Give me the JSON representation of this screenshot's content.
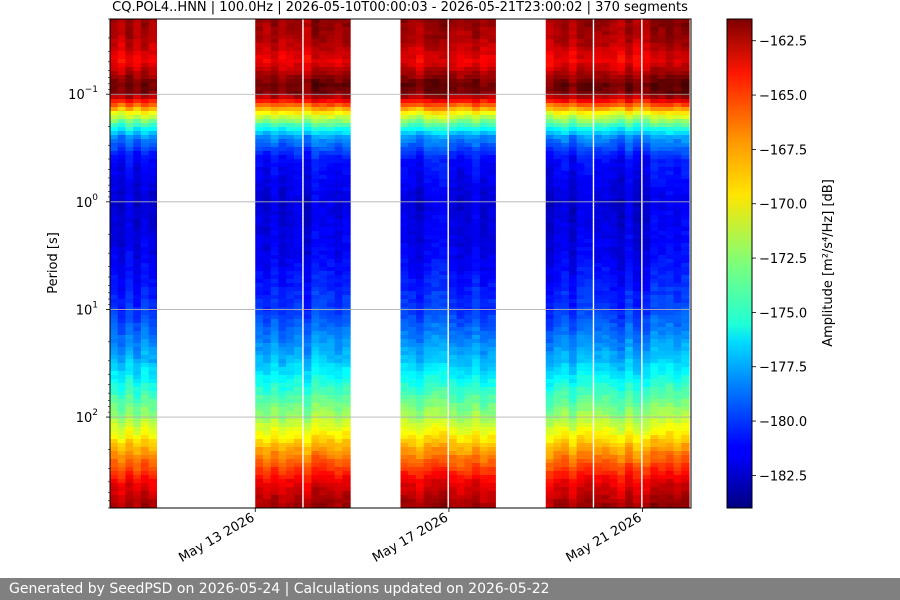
{
  "chart_data": {
    "type": "heatmap",
    "title": "CQ.POL4..HNN | 100.0Hz | 2026-05-10T00:00:03 - 2026-05-21T23:00:02 | 370 segments",
    "ylabel": "Period [s]",
    "y_scale": "log",
    "y_inverted": true,
    "ylim": [
      0.02,
      700
    ],
    "y_ticks": [
      {
        "value": 0.1,
        "base": "10",
        "exp": "−1"
      },
      {
        "value": 1,
        "base": "10",
        "exp": "0"
      },
      {
        "value": 10,
        "base": "10",
        "exp": "1"
      },
      {
        "value": 100,
        "base": "10",
        "exp": "2"
      }
    ],
    "xlim": [
      "2026-05-10T00:00:00",
      "2026-05-22T00:00:00"
    ],
    "x_ticks": [
      {
        "date": "2026-05-13",
        "label": "May 13 2026"
      },
      {
        "date": "2026-05-17",
        "label": "May 17 2026"
      },
      {
        "date": "2026-05-21",
        "label": "May 21 2026"
      }
    ],
    "data_blocks": [
      {
        "start": "2026-05-10T00:00:00",
        "end": "2026-05-10T23:00:00"
      },
      {
        "start": "2026-05-13T00:00:00",
        "end": "2026-05-13T23:00:00"
      },
      {
        "start": "2026-05-14T00:00:00",
        "end": "2026-05-14T23:00:00"
      },
      {
        "start": "2026-05-16T00:00:00",
        "end": "2026-05-16T23:00:00"
      },
      {
        "start": "2026-05-17T00:00:00",
        "end": "2026-05-17T23:00:00"
      },
      {
        "start": "2026-05-19T00:00:00",
        "end": "2026-05-19T23:00:00"
      },
      {
        "start": "2026-05-20T00:00:00",
        "end": "2026-05-20T23:00:00"
      },
      {
        "start": "2026-05-21T00:00:00",
        "end": "2026-05-21T23:00:00"
      }
    ],
    "typical_amplitude_profile": {
      "period_s": [
        0.02,
        0.03,
        0.05,
        0.08,
        0.1,
        0.15,
        0.25,
        0.4,
        1,
        3,
        10,
        30,
        100,
        200,
        400,
        700
      ],
      "amplitude_db": [
        -162,
        -162.5,
        -164,
        -161,
        -161.5,
        -170,
        -178,
        -181,
        -182,
        -181.5,
        -180,
        -177,
        -172,
        -168,
        -164,
        -162
      ]
    },
    "colorbar": {
      "label": "Amplitude [m²/s⁴/Hz] [dB]",
      "range": [
        -184,
        -161.5
      ],
      "ticks": [
        "−162.5",
        "−165.0",
        "−167.5",
        "−170.0",
        "−172.5",
        "−175.0",
        "−177.5",
        "−180.0",
        "−182.5"
      ],
      "tick_values": [
        -162.5,
        -165,
        -167.5,
        -170,
        -172.5,
        -175,
        -177.5,
        -180,
        -182.5
      ],
      "colormap": "jet"
    },
    "grid": "horizontal"
  },
  "footer": {
    "text": "Generated by SeedPSD on 2026-05-24 | Calculations updated on 2026-05-22"
  },
  "colors": {
    "footer_bg": "#808080",
    "grid": "#b0b0b0"
  }
}
